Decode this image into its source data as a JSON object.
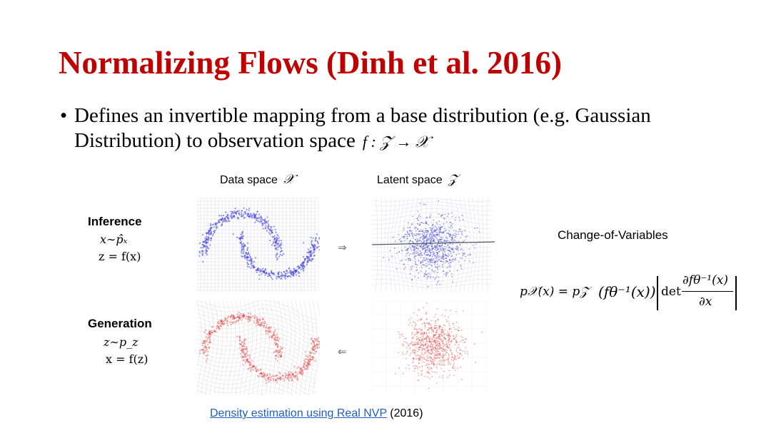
{
  "slide": {
    "title": "Normalizing Flows (Dinh et al. 2016)",
    "bullet": {
      "line1": "Defines an invertible mapping from a base distribution (e.g. Gaussian",
      "line2": "Distribution) to observation space",
      "math": "f :  𝒵 → 𝒳"
    },
    "columns": {
      "data_space": "Data space",
      "data_symbol": "𝒳",
      "latent_space": "Latent space",
      "latent_symbol": "𝒵"
    },
    "inference": {
      "label": "Inference",
      "eq1": "x∼p̂ₓ",
      "eq2": "z = f(x)",
      "arrow": "⇒"
    },
    "generation": {
      "label": "Generation",
      "eq1": "z∼p_z",
      "eq2": "x = f(z)",
      "arrow": "⇐"
    },
    "change_of_variables": {
      "label": "Change-of-Variables",
      "lhs": "p𝒳(x) = p𝒵",
      "inner": "(fθ⁻¹(x))",
      "det": "det",
      "numerator": "∂fθ⁻¹(x)",
      "denominator": "∂x"
    },
    "caption": {
      "link": "Density estimation using Real NVP",
      "suffix": " (2016)"
    },
    "colors": {
      "title": "#c00000",
      "inference_points": "#3a3ad8",
      "generation_points": "#e23a3a",
      "link": "#1f5fbf"
    }
  }
}
